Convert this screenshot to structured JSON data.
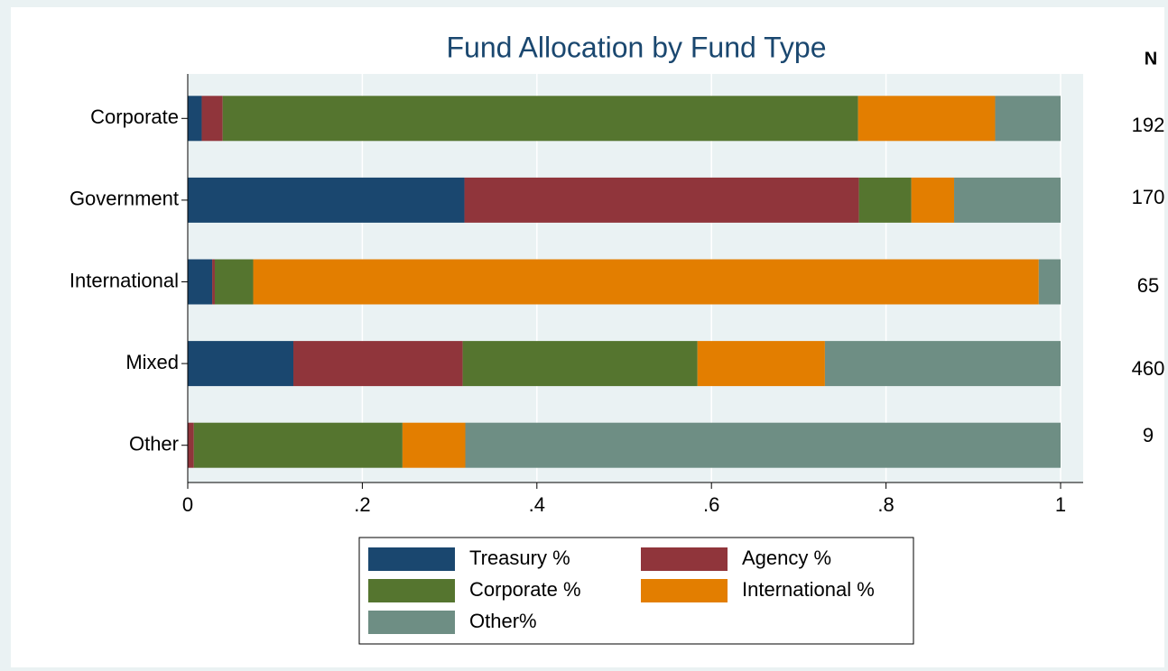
{
  "chart_data": {
    "type": "bar",
    "orientation": "horizontal",
    "stacked": true,
    "title": "Fund Allocation by Fund Type",
    "categories": [
      "Corporate",
      "Government",
      "International",
      "Mixed",
      "Other"
    ],
    "series": [
      {
        "name": "Treasury %",
        "color": "#1a476f",
        "values": [
          0.016,
          0.317,
          0.028,
          0.121,
          0.0
        ]
      },
      {
        "name": "Agency %",
        "color": "#90353b",
        "values": [
          0.024,
          0.452,
          0.003,
          0.194,
          0.007
        ]
      },
      {
        "name": "Corporate %",
        "color": "#55752f",
        "values": [
          0.728,
          0.06,
          0.044,
          0.269,
          0.239
        ]
      },
      {
        "name": "International %",
        "color": "#e37e00",
        "values": [
          0.157,
          0.049,
          0.9,
          0.146,
          0.072
        ]
      },
      {
        "name": "Other%",
        "color": "#6e8e84",
        "values": [
          0.075,
          0.122,
          0.025,
          0.27,
          0.682
        ]
      }
    ],
    "xlim": [
      0,
      1
    ],
    "xticks": [
      0,
      {
        "value": 0.2,
        "label": ".2"
      },
      {
        "value": 0.4,
        "label": ".4"
      },
      {
        "value": 0.6,
        "label": ".6"
      },
      {
        "value": 0.8,
        "label": ".8"
      },
      1
    ],
    "grid": true,
    "legend": "bottom",
    "n_header": "N",
    "n_values": [
      192,
      170,
      65,
      460,
      9
    ]
  }
}
